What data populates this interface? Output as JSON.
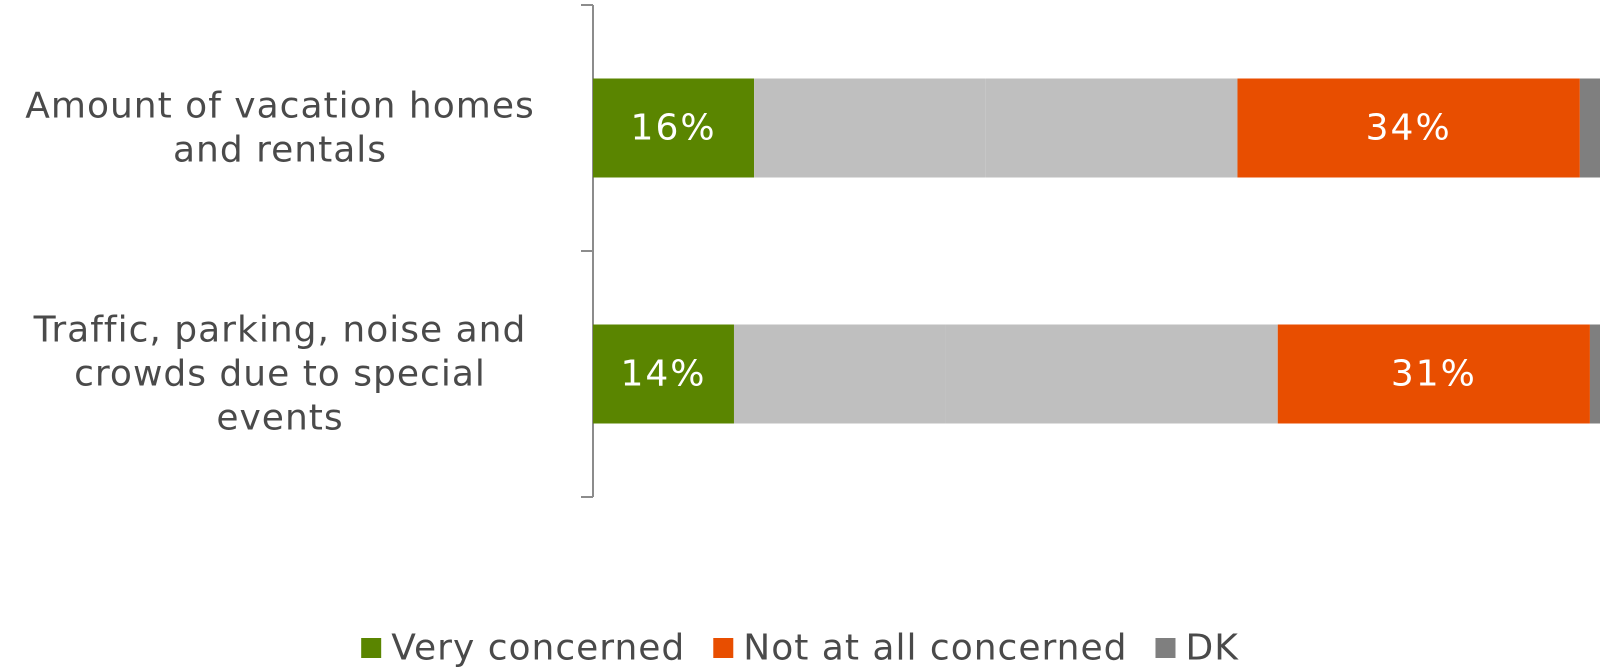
{
  "chart_data": {
    "type": "bar",
    "orientation": "horizontal",
    "stacked": true,
    "xlim": [
      0,
      100
    ],
    "grid": false,
    "legend_position": "bottom",
    "categories": [
      [
        "Amount of vacation homes",
        "and rentals"
      ],
      [
        "Traffic, parking, noise and",
        "crowds due to special",
        "events"
      ]
    ],
    "series": [
      {
        "name": "Very concerned",
        "values": [
          16,
          14
        ],
        "labels": [
          "16%",
          "14%"
        ],
        "color": "#5a8500",
        "in_legend": true
      },
      {
        "name": "",
        "values": [
          23,
          21
        ],
        "labels": [
          "",
          ""
        ],
        "color": "#bfbfbf",
        "in_legend": false
      },
      {
        "name": "",
        "values": [
          25,
          33
        ],
        "labels": [
          "",
          ""
        ],
        "color": "#bfbfbf",
        "in_legend": false
      },
      {
        "name": "Not at all concerned",
        "values": [
          34,
          31
        ],
        "labels": [
          "34%",
          "31%"
        ],
        "color": "#e84e00",
        "in_legend": true
      },
      {
        "name": "DK",
        "values": [
          2,
          1
        ],
        "labels": [
          "",
          ""
        ],
        "color": "#7f7f7f",
        "in_legend": true
      }
    ]
  }
}
